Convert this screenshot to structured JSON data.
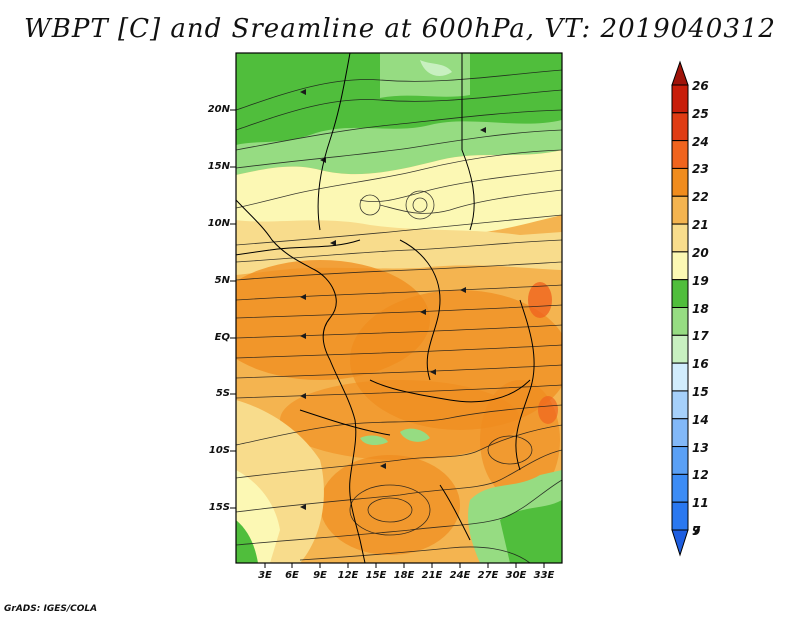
{
  "title": "WBPT [C] and Sreamline at 600hPa, VT: 2019040312",
  "credit": "GrADS: IGES/COLA",
  "map": {
    "lat_labels": [
      "20N",
      "15N",
      "10N",
      "5N",
      "EQ",
      "5S",
      "10S",
      "15S"
    ],
    "lon_labels": [
      "3E",
      "6E",
      "9E",
      "12E",
      "15E",
      "18E",
      "21E",
      "24E",
      "27E",
      "30E",
      "33E"
    ],
    "variable": "Wet-bulb potential temperature",
    "overlay": "Streamlines"
  },
  "colorbar": {
    "levels": [
      "7",
      "9",
      "11",
      "12",
      "13",
      "14",
      "15",
      "16",
      "17",
      "18",
      "19",
      "20",
      "21",
      "22",
      "23",
      "24",
      "25",
      "26"
    ],
    "colors": [
      "#1e5ee0",
      "#2a78f0",
      "#3c8cf5",
      "#5aa0f5",
      "#82b8f8",
      "#a6d0fa",
      "#d2ecfc",
      "#c8f0c0",
      "#96dc82",
      "#50be3c",
      "#fcf8b4",
      "#f8dc8c",
      "#f4b450",
      "#f08c1e",
      "#f0641e",
      "#e03c14",
      "#c81e0a",
      "#a0140a"
    ]
  }
}
